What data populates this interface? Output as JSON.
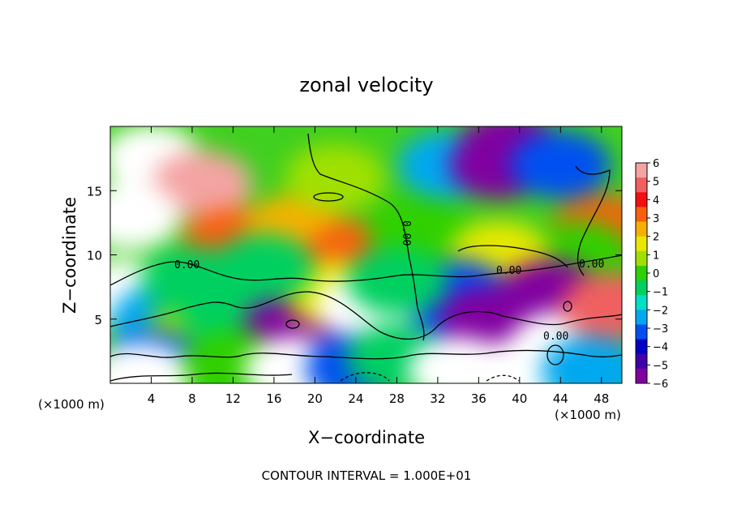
{
  "chart_data": {
    "type": "heatmap",
    "title": "zonal velocity",
    "xlabel": "X−coordinate",
    "ylabel": "Z−coordinate",
    "x_unit_left": "(×1000 m)",
    "x_unit_right": "(×1000 m)",
    "footer": "CONTOUR INTERVAL = 1.000E+01",
    "xlim": [
      0,
      50
    ],
    "ylim": [
      0,
      20
    ],
    "x_ticks": [
      4,
      8,
      12,
      16,
      20,
      24,
      28,
      32,
      36,
      40,
      44,
      48
    ],
    "x_tick_labels": [
      "4",
      "8",
      "12",
      "16",
      "20",
      "24",
      "28",
      "32",
      "36",
      "40",
      "44",
      "48"
    ],
    "y_ticks": [
      5,
      10,
      15
    ],
    "y_tick_labels": [
      "5",
      "10",
      "15"
    ],
    "contour_labels": [
      "0.00",
      "0.00",
      "0.00",
      "0.00",
      "0.00"
    ],
    "colorbar": {
      "range": [
        -6,
        6
      ],
      "ticks": [
        6,
        5,
        4,
        3,
        2,
        1,
        0,
        -1,
        -2,
        -3,
        -4,
        -5,
        -6
      ],
      "tick_labels": [
        "6",
        "5",
        "4",
        "3",
        "2",
        "1",
        "0",
        "−1",
        "−2",
        "−3",
        "−4",
        "−5",
        "−6"
      ],
      "colors": [
        "#f4a3a3",
        "#f06060",
        "#f21010",
        "#f86010",
        "#f8b000",
        "#e8e800",
        "#a0e000",
        "#30d000",
        "#00d060",
        "#00e0c8",
        "#00a8f0",
        "#0050f0",
        "#0000c8",
        "#4000a8",
        "#8000a0"
      ],
      "saturation_color": "#ffffff"
    },
    "field_blobs": [
      {
        "x": 4,
        "z": 17.5,
        "value": 6.5
      },
      {
        "x": 9,
        "z": 15.5,
        "value": 6
      },
      {
        "x": 2,
        "z": 13,
        "value": 6.5
      },
      {
        "x": 12,
        "z": 11,
        "value": 3
      },
      {
        "x": 18,
        "z": 12,
        "value": 2.5
      },
      {
        "x": 24,
        "z": 10,
        "value": 3
      },
      {
        "x": 22,
        "z": 16,
        "value": 0.5
      },
      {
        "x": 30,
        "z": 12,
        "value": 0
      },
      {
        "x": 33,
        "z": 17,
        "value": -2.5
      },
      {
        "x": 38,
        "z": 17,
        "value": -5.5
      },
      {
        "x": 39,
        "z": 18.5,
        "value": -7
      },
      {
        "x": 44,
        "z": 17,
        "value": -3
      },
      {
        "x": 48,
        "z": 12,
        "value": 3
      },
      {
        "x": 46,
        "z": 10,
        "value": 0
      },
      {
        "x": 38,
        "z": 10,
        "value": 2
      },
      {
        "x": 34,
        "z": 7,
        "value": -3.5
      },
      {
        "x": 30,
        "z": 5,
        "value": -3
      },
      {
        "x": 37,
        "z": 5,
        "value": -7
      },
      {
        "x": 43,
        "z": 7,
        "value": -7
      },
      {
        "x": 44,
        "z": 3,
        "value": 7
      },
      {
        "x": 49,
        "z": 6,
        "value": 5
      },
      {
        "x": 1,
        "z": 7,
        "value": 6.5
      },
      {
        "x": 5,
        "z": 5,
        "value": -2
      },
      {
        "x": 8,
        "z": 3.5,
        "value": 0.5
      },
      {
        "x": 12,
        "z": 5,
        "value": -1
      },
      {
        "x": 18,
        "z": 4.5,
        "value": -7
      },
      {
        "x": 22,
        "z": 7,
        "value": 2
      },
      {
        "x": 25,
        "z": 6,
        "value": 7
      },
      {
        "x": 28,
        "z": 8,
        "value": -1
      },
      {
        "x": 4,
        "z": 1.5,
        "value": -3
      },
      {
        "x": 3,
        "z": 0.5,
        "value": 7
      },
      {
        "x": 12,
        "z": 1.5,
        "value": 0
      },
      {
        "x": 18,
        "z": 1,
        "value": 7
      },
      {
        "x": 24,
        "z": 1.2,
        "value": -3
      },
      {
        "x": 28,
        "z": 2,
        "value": -1
      },
      {
        "x": 34,
        "z": 1,
        "value": 7
      },
      {
        "x": 40,
        "z": 0.8,
        "value": 7
      },
      {
        "x": 47,
        "z": 1,
        "value": -2
      },
      {
        "x": 15,
        "z": 9,
        "value": -1
      },
      {
        "x": 8,
        "z": 8,
        "value": -0.5
      }
    ]
  }
}
